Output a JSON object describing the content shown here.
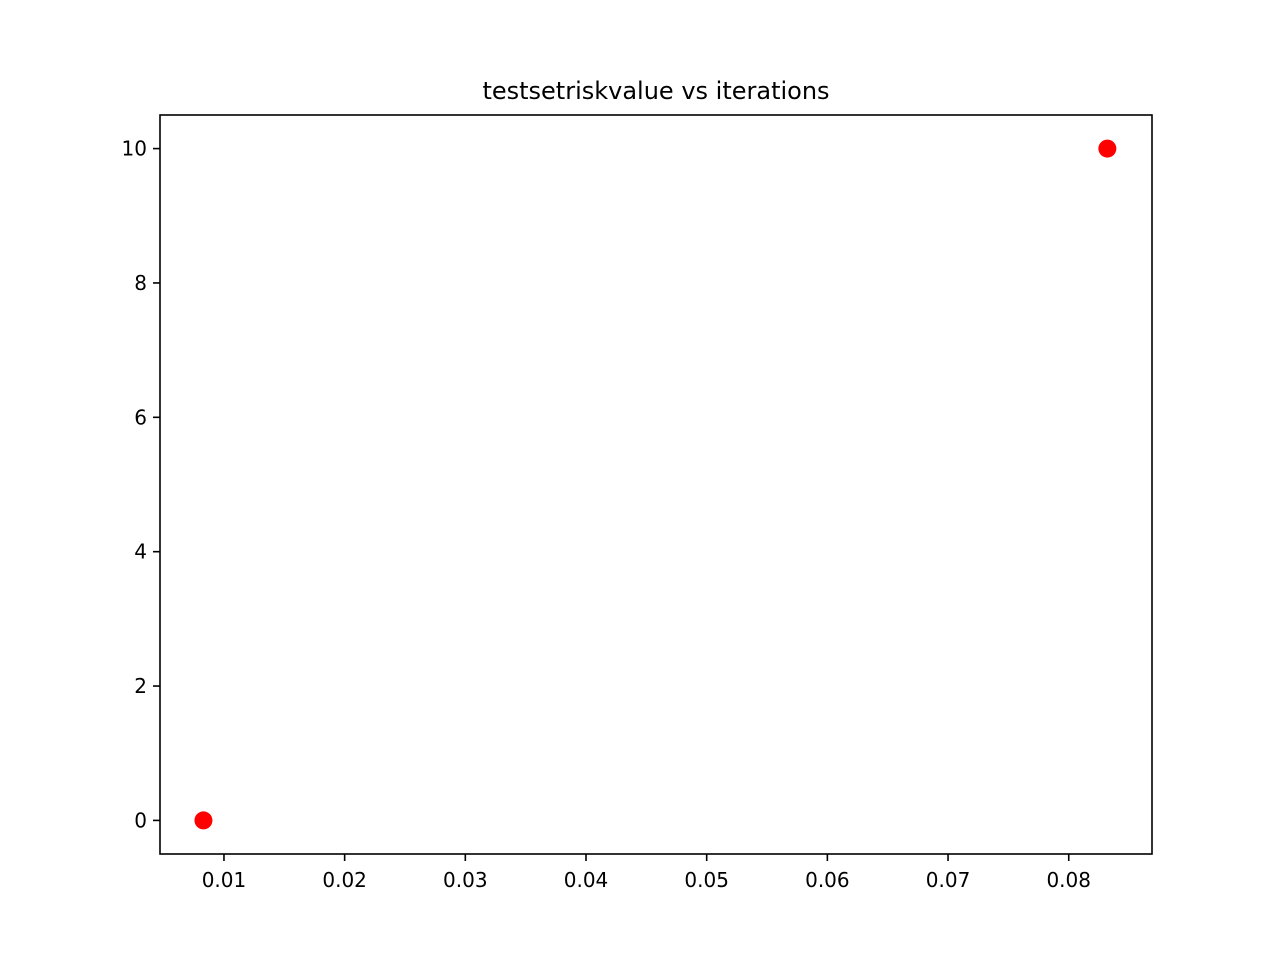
{
  "chart_data": {
    "type": "scatter",
    "title": "testsetriskvalue vs iterations",
    "xlabel": "",
    "ylabel": "",
    "xlim": [
      0.0047,
      0.0869
    ],
    "ylim": [
      -0.5,
      10.5
    ],
    "x_ticks": [
      0.01,
      0.02,
      0.03,
      0.04,
      0.05,
      0.06,
      0.07,
      0.08
    ],
    "x_tick_labels": [
      "0.01",
      "0.02",
      "0.03",
      "0.04",
      "0.05",
      "0.06",
      "0.07",
      "0.08"
    ],
    "y_ticks": [
      0,
      2,
      4,
      6,
      8,
      10
    ],
    "y_tick_labels": [
      "0",
      "2",
      "4",
      "6",
      "8",
      "10"
    ],
    "grid": false,
    "legend": "none",
    "series": [
      {
        "color": "#ff0000",
        "marker": "circle",
        "points": [
          {
            "x": 0.0083,
            "y": 0
          },
          {
            "x": 0.0832,
            "y": 10
          }
        ]
      }
    ]
  }
}
